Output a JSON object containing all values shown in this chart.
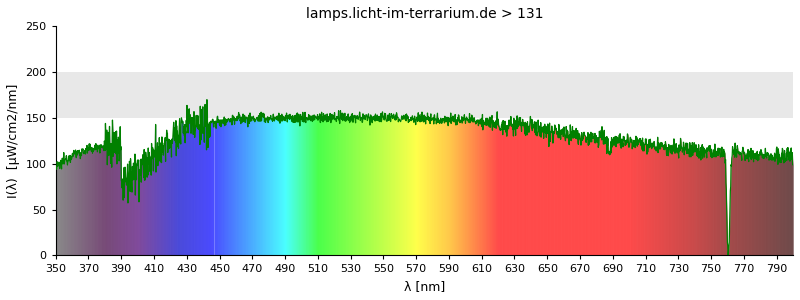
{
  "title": "lamps.licht-im-terrarium.de > 131",
  "xlabel": "λ [nm]",
  "ylabel": "I(λ)  [µW/cm2/nm]",
  "xlim": [
    350,
    800
  ],
  "ylim": [
    0,
    250
  ],
  "yticks": [
    0,
    50,
    100,
    150,
    200,
    250
  ],
  "xticks": [
    350,
    370,
    390,
    410,
    430,
    450,
    470,
    490,
    510,
    530,
    550,
    570,
    590,
    610,
    630,
    650,
    670,
    690,
    710,
    730,
    750,
    770,
    790
  ],
  "hband_y1": 150,
  "hband_y2": 200,
  "hband_color": "#e8e8e8",
  "background_color": "#ffffff",
  "line_color": "#008000",
  "line_width": 0.9,
  "title_fontsize": 10,
  "axis_fontsize": 9,
  "tick_fontsize": 8,
  "figwidth": 8.0,
  "figheight": 3.0,
  "dpi": 100
}
